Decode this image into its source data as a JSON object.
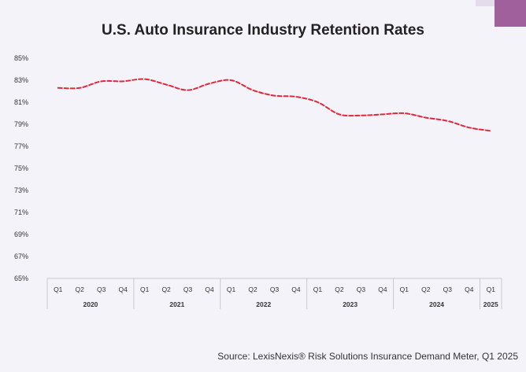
{
  "colors": {
    "background": "#f5f3fa",
    "line": "#e0283c",
    "axis": "#c8c8cc",
    "corner_accent": "#a0609c"
  },
  "source_text": "Source: LexisNexis® Risk Solutions Insurance Demand Meter, Q1 2025",
  "chart_data": {
    "type": "line",
    "title": "U.S. Auto Insurance Industry Retention Rates",
    "xlabel": "",
    "ylabel": "",
    "ylim": [
      65,
      85
    ],
    "yticks": [
      65,
      67,
      69,
      71,
      73,
      75,
      77,
      79,
      81,
      83,
      85
    ],
    "ytick_labels": [
      "65%",
      "67%",
      "69%",
      "71%",
      "73%",
      "75%",
      "77%",
      "79%",
      "81%",
      "83%",
      "85%"
    ],
    "grid": false,
    "line_style": "dashed",
    "categories": [
      "Q1",
      "Q2",
      "Q3",
      "Q4",
      "Q1",
      "Q2",
      "Q3",
      "Q4",
      "Q1",
      "Q2",
      "Q3",
      "Q4",
      "Q1",
      "Q2",
      "Q3",
      "Q4",
      "Q1",
      "Q2",
      "Q3",
      "Q4",
      "Q1"
    ],
    "year_groups": [
      {
        "label": "2020",
        "count": 4
      },
      {
        "label": "2021",
        "count": 4
      },
      {
        "label": "2022",
        "count": 4
      },
      {
        "label": "2023",
        "count": 4
      },
      {
        "label": "2024",
        "count": 4
      },
      {
        "label": "2025",
        "count": 1
      }
    ],
    "series": [
      {
        "values": [
          82.3,
          82.3,
          82.9,
          82.9,
          83.1,
          82.6,
          82.1,
          82.7,
          83.0,
          82.1,
          81.6,
          81.5,
          81.0,
          79.9,
          79.8,
          79.9,
          80.0,
          79.6,
          79.3,
          78.7,
          78.4
        ]
      }
    ]
  }
}
